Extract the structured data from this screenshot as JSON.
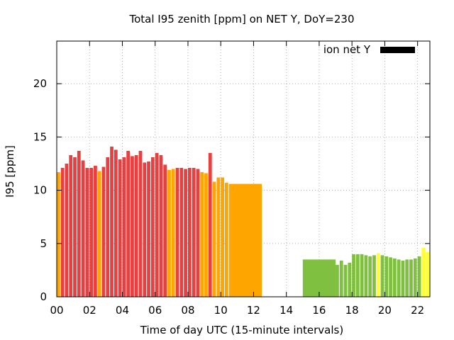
{
  "chart_data": {
    "type": "bar",
    "title": "Total I95 zenith [ppm] on NET Y, DoY=230",
    "xlabel": "Time of day UTC (15-minute intervals)",
    "ylabel": "I95 [ppm]",
    "xlim": [
      0,
      22.75
    ],
    "ylim": [
      0,
      24
    ],
    "xticks": [
      "00",
      "02",
      "04",
      "06",
      "08",
      "10",
      "12",
      "14",
      "16",
      "18",
      "20",
      "22"
    ],
    "xtick_values": [
      0,
      2,
      4,
      6,
      8,
      10,
      12,
      14,
      16,
      18,
      20,
      22
    ],
    "yticks": [
      0,
      5,
      10,
      15,
      20
    ],
    "grid": true,
    "legend": {
      "label": "ion net Y",
      "color": "#000000",
      "placement": "top-right"
    },
    "colors": {
      "red": "#e84040",
      "orange": "#ffa500",
      "green": "#80c040",
      "yellow": "#ffff33"
    },
    "bars": [
      {
        "x": 0.0,
        "w": 0.25,
        "v": 11.7,
        "c": "orange"
      },
      {
        "x": 0.25,
        "w": 0.25,
        "v": 12.1,
        "c": "red"
      },
      {
        "x": 0.5,
        "w": 0.25,
        "v": 12.5,
        "c": "red"
      },
      {
        "x": 0.75,
        "w": 0.25,
        "v": 13.3,
        "c": "red"
      },
      {
        "x": 1.0,
        "w": 0.25,
        "v": 13.1,
        "c": "red"
      },
      {
        "x": 1.25,
        "w": 0.25,
        "v": 13.7,
        "c": "red"
      },
      {
        "x": 1.5,
        "w": 0.25,
        "v": 12.8,
        "c": "red"
      },
      {
        "x": 1.75,
        "w": 0.25,
        "v": 12.1,
        "c": "red"
      },
      {
        "x": 2.0,
        "w": 0.25,
        "v": 12.1,
        "c": "red"
      },
      {
        "x": 2.25,
        "w": 0.25,
        "v": 12.3,
        "c": "red"
      },
      {
        "x": 2.5,
        "w": 0.25,
        "v": 11.8,
        "c": "orange"
      },
      {
        "x": 2.75,
        "w": 0.25,
        "v": 12.2,
        "c": "red"
      },
      {
        "x": 3.0,
        "w": 0.25,
        "v": 13.1,
        "c": "red"
      },
      {
        "x": 3.25,
        "w": 0.25,
        "v": 14.1,
        "c": "red"
      },
      {
        "x": 3.5,
        "w": 0.25,
        "v": 13.8,
        "c": "red"
      },
      {
        "x": 3.75,
        "w": 0.25,
        "v": 12.9,
        "c": "red"
      },
      {
        "x": 4.0,
        "w": 0.25,
        "v": 13.1,
        "c": "red"
      },
      {
        "x": 4.25,
        "w": 0.25,
        "v": 13.7,
        "c": "red"
      },
      {
        "x": 4.5,
        "w": 0.25,
        "v": 13.2,
        "c": "red"
      },
      {
        "x": 4.75,
        "w": 0.25,
        "v": 13.3,
        "c": "red"
      },
      {
        "x": 5.0,
        "w": 0.25,
        "v": 13.7,
        "c": "red"
      },
      {
        "x": 5.25,
        "w": 0.25,
        "v": 12.6,
        "c": "red"
      },
      {
        "x": 5.5,
        "w": 0.25,
        "v": 12.7,
        "c": "red"
      },
      {
        "x": 5.75,
        "w": 0.25,
        "v": 13.1,
        "c": "red"
      },
      {
        "x": 6.0,
        "w": 0.25,
        "v": 13.5,
        "c": "red"
      },
      {
        "x": 6.25,
        "w": 0.25,
        "v": 13.3,
        "c": "red"
      },
      {
        "x": 6.5,
        "w": 0.25,
        "v": 12.4,
        "c": "red"
      },
      {
        "x": 6.75,
        "w": 0.25,
        "v": 11.9,
        "c": "orange"
      },
      {
        "x": 7.0,
        "w": 0.25,
        "v": 12.0,
        "c": "orange"
      },
      {
        "x": 7.25,
        "w": 0.25,
        "v": 12.1,
        "c": "red"
      },
      {
        "x": 7.5,
        "w": 0.25,
        "v": 12.1,
        "c": "red"
      },
      {
        "x": 7.75,
        "w": 0.25,
        "v": 12.0,
        "c": "red"
      },
      {
        "x": 8.0,
        "w": 0.25,
        "v": 12.1,
        "c": "red"
      },
      {
        "x": 8.25,
        "w": 0.25,
        "v": 12.1,
        "c": "red"
      },
      {
        "x": 8.5,
        "w": 0.25,
        "v": 12.0,
        "c": "red"
      },
      {
        "x": 8.75,
        "w": 0.25,
        "v": 11.7,
        "c": "orange"
      },
      {
        "x": 9.0,
        "w": 0.25,
        "v": 11.6,
        "c": "orange"
      },
      {
        "x": 9.25,
        "w": 0.25,
        "v": 13.5,
        "c": "red"
      },
      {
        "x": 9.5,
        "w": 0.25,
        "v": 10.8,
        "c": "orange"
      },
      {
        "x": 9.75,
        "w": 0.25,
        "v": 11.2,
        "c": "orange"
      },
      {
        "x": 10.0,
        "w": 0.25,
        "v": 11.2,
        "c": "orange"
      },
      {
        "x": 10.25,
        "w": 0.25,
        "v": 10.7,
        "c": "orange"
      },
      {
        "x": 10.5,
        "w": 2.0,
        "v": 10.6,
        "c": "orange"
      },
      {
        "x": 15.0,
        "w": 2.0,
        "v": 3.5,
        "c": "green"
      },
      {
        "x": 17.0,
        "w": 0.25,
        "v": 3.0,
        "c": "green"
      },
      {
        "x": 17.25,
        "w": 0.25,
        "v": 3.4,
        "c": "green"
      },
      {
        "x": 17.5,
        "w": 0.25,
        "v": 3.0,
        "c": "green"
      },
      {
        "x": 17.75,
        "w": 0.25,
        "v": 3.2,
        "c": "green"
      },
      {
        "x": 18.0,
        "w": 0.25,
        "v": 4.0,
        "c": "green"
      },
      {
        "x": 18.25,
        "w": 0.25,
        "v": 4.0,
        "c": "green"
      },
      {
        "x": 18.5,
        "w": 0.25,
        "v": 4.0,
        "c": "green"
      },
      {
        "x": 18.75,
        "w": 0.25,
        "v": 3.9,
        "c": "green"
      },
      {
        "x": 19.0,
        "w": 0.25,
        "v": 3.8,
        "c": "green"
      },
      {
        "x": 19.25,
        "w": 0.25,
        "v": 3.9,
        "c": "green"
      },
      {
        "x": 19.5,
        "w": 0.25,
        "v": 4.1,
        "c": "yellow"
      },
      {
        "x": 19.75,
        "w": 0.25,
        "v": 3.9,
        "c": "green"
      },
      {
        "x": 20.0,
        "w": 0.25,
        "v": 3.8,
        "c": "green"
      },
      {
        "x": 20.25,
        "w": 0.25,
        "v": 3.7,
        "c": "green"
      },
      {
        "x": 20.5,
        "w": 0.25,
        "v": 3.6,
        "c": "green"
      },
      {
        "x": 20.75,
        "w": 0.25,
        "v": 3.5,
        "c": "green"
      },
      {
        "x": 21.0,
        "w": 0.25,
        "v": 3.4,
        "c": "green"
      },
      {
        "x": 21.25,
        "w": 0.25,
        "v": 3.5,
        "c": "green"
      },
      {
        "x": 21.5,
        "w": 0.25,
        "v": 3.5,
        "c": "green"
      },
      {
        "x": 21.75,
        "w": 0.25,
        "v": 3.6,
        "c": "green"
      },
      {
        "x": 22.0,
        "w": 0.25,
        "v": 3.8,
        "c": "green"
      },
      {
        "x": 22.25,
        "w": 0.25,
        "v": 4.6,
        "c": "yellow"
      },
      {
        "x": 22.5,
        "w": 0.25,
        "v": 4.2,
        "c": "yellow"
      }
    ]
  }
}
